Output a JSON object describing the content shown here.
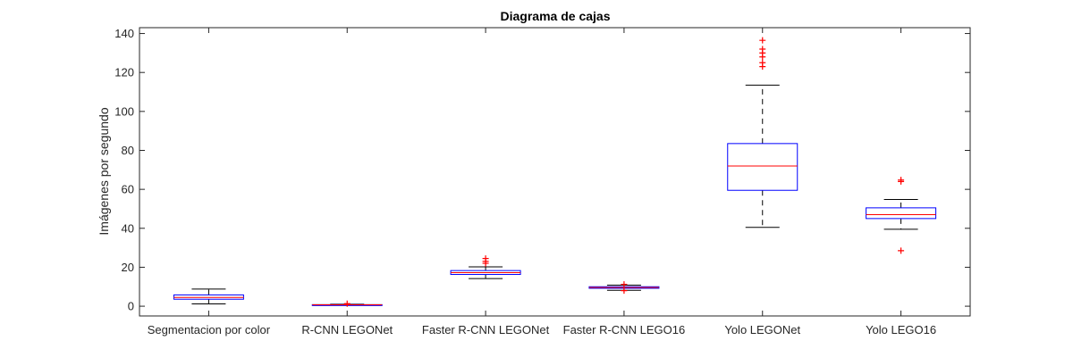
{
  "chart_data": {
    "type": "boxplot",
    "title": "Diagrama de cajas",
    "xlabel": "",
    "ylabel": "Imágenes por segundo",
    "ylim": [
      -5,
      143
    ],
    "yticks": [
      0,
      20,
      40,
      60,
      80,
      100,
      120,
      140
    ],
    "grid": false,
    "categories": [
      "Segmentacion por color",
      "R-CNN LEGONet",
      "Faster R-CNN LEGONet",
      "Faster R-CNN LEGO16",
      "Yolo LEGONet",
      "Yolo LEGO16"
    ],
    "boxes": [
      {
        "category": "Segmentacion por color",
        "whisker_low": 1.2,
        "q1": 3.6,
        "median": 4.5,
        "q3": 5.8,
        "whisker_high": 8.8,
        "outliers": []
      },
      {
        "category": "R-CNN LEGONet",
        "whisker_low": 0.5,
        "q1": 0.6,
        "median": 0.7,
        "q3": 0.8,
        "whisker_high": 1.0,
        "outliers": [
          1.3
        ]
      },
      {
        "category": "Faster R-CNN LEGONet",
        "whisker_low": 14.2,
        "q1": 16.3,
        "median": 17.2,
        "q3": 18.3,
        "whisker_high": 20.2,
        "outliers": [
          22.0,
          23.0,
          24.5
        ]
      },
      {
        "category": "Faster R-CNN LEGO16",
        "whisker_low": 8.2,
        "q1": 9.2,
        "median": 9.6,
        "q3": 10.0,
        "whisker_high": 10.8,
        "outliers": [
          8.0,
          11.2
        ]
      },
      {
        "category": "Yolo LEGONet",
        "whisker_low": 40.5,
        "q1": 59.5,
        "median": 72.0,
        "q3": 83.5,
        "whisker_high": 113.5,
        "outliers": [
          123.0,
          125.0,
          128.0,
          130.0,
          132.0,
          136.5
        ]
      },
      {
        "category": "Yolo LEGO16",
        "whisker_low": 39.5,
        "q1": 45.0,
        "median": 47.0,
        "q3": 50.5,
        "whisker_high": 54.8,
        "outliers": [
          28.5,
          64.0,
          64.8
        ]
      }
    ],
    "colors": {
      "box": "#0000ff",
      "median": "#ff0000",
      "whisker": "#000000",
      "outlier": "#ff0000",
      "axis": "#262626"
    }
  }
}
